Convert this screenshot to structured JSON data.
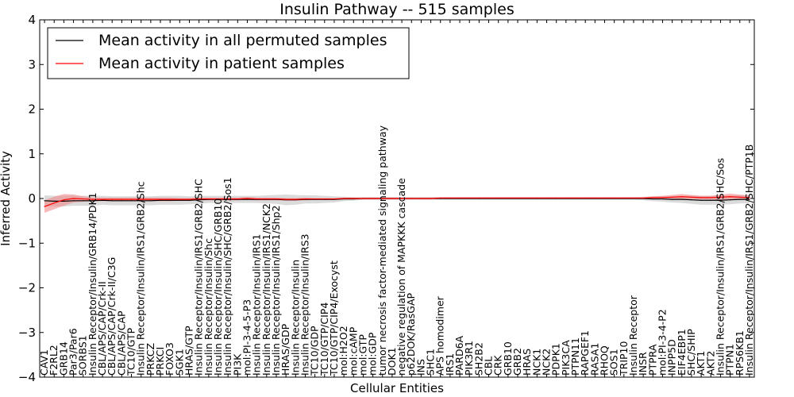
{
  "chart_data": {
    "type": "line",
    "title": "Insulin Pathway -- 515 samples",
    "xlabel": "Cellular Entities",
    "ylabel": "Inferred Activity",
    "ylim": [
      -4,
      4
    ],
    "yticks": [
      "−4",
      "−3",
      "−2",
      "−1",
      "0",
      "1",
      "2",
      "3",
      "4"
    ],
    "legend_position": "top-left",
    "categories": [
      "CAV1",
      "F2RL2",
      "GRB14",
      "Par3/Par6",
      "SORBS1",
      "Insulin Receptor/Insulin/GRB14/PDK1",
      "CBL/APS/CAP/Crk-II",
      "CBL/APS/CAP/Crk-II/C3G",
      "CBL/APS/CAP",
      "TC10/GTP",
      "Insulin Receptor/Insulin/IRS1/GRB2/Shc",
      "PRKCZ",
      "PRKCI",
      "FOXO3",
      "SGK1",
      "HRAS/GTP",
      "Insulin Receptor/Insulin/IRS1/GRB2/SHC",
      "Insulin Receptor/Insulin/Shc",
      "Insulin Receptor/Insulin/SHC/GRB10",
      "Insulin Receptor/Insulin/SHC/GRB2/Sos1",
      "PI3K",
      "mol:PI-3-4-5-P3",
      "Insulin Receptor/Insulin/IRS1",
      "Insulin Receptor/Insulin/IRS1/NCK2",
      "Insulin Receptor/Insulin/IRS1/Shp2",
      "HRAS/GDP",
      "Insulin Receptor/Insulin",
      "Insulin Receptor/Insulin/IRS3",
      "TC10/GDP",
      "TC10/GTP/CIP4",
      "TC10/GTP/CIP4/Exocyst",
      "mol:H2O2",
      "mol:cAMP",
      "mol:GTP",
      "mol:GDP",
      "tumor necrosis factor-mediated signaling pathway",
      "DOK1",
      "negative regulation of MAPKKK cascade",
      "p62DOK/RasGAP",
      "INS",
      "SHC1",
      "APS homodimer",
      "IRS1",
      "PARD6A",
      "PIK3R1",
      "SH2B2",
      "CBL",
      "CRK",
      "GRB10",
      "GRB2",
      "HRAS",
      "NCK1",
      "NCK2",
      "PDPK1",
      "PIK3CA",
      "PTPN11",
      "RAPGEF1",
      "RASA1",
      "RHOQ",
      "SOS1",
      "TRIP10",
      "Insulin Receptor",
      "INSR",
      "PTPRA",
      "mol:PI-3-4-P2",
      "INPP5D",
      "EIF4EBP1",
      "SHC/SHIP",
      "AKT1",
      "AKT2",
      "Insulin Receptor/Insulin/IRS1/GRB2/SHC/Sos",
      "PTPN1",
      "RPS6KB1",
      "Insulin Receptor/Insulin/IRS1/GRB2/SHC/PTP1B"
    ],
    "series": [
      {
        "name": "Mean activity in all permuted samples",
        "color": "#000000",
        "band_color": "#999999",
        "values": [
          -0.05,
          -0.06,
          -0.06,
          -0.05,
          -0.05,
          -0.05,
          -0.04,
          -0.05,
          -0.05,
          -0.05,
          -0.05,
          -0.05,
          -0.04,
          -0.04,
          -0.04,
          -0.04,
          -0.03,
          -0.02,
          -0.02,
          -0.02,
          -0.02,
          -0.02,
          -0.02,
          -0.02,
          -0.02,
          -0.03,
          -0.03,
          -0.02,
          -0.02,
          -0.02,
          -0.02,
          -0.01,
          -0.01,
          0.0,
          0.0,
          0.0,
          0.0,
          0.0,
          0.0,
          0.0,
          0.0,
          0.0,
          0.0,
          0.0,
          0.0,
          0.0,
          0.0,
          0.0,
          0.0,
          0.0,
          0.0,
          0.0,
          0.0,
          0.0,
          0.0,
          0.0,
          0.0,
          0.0,
          0.0,
          0.0,
          0.0,
          0.0,
          0.0,
          -0.01,
          -0.01,
          -0.02,
          -0.02,
          -0.03,
          -0.04,
          -0.04,
          -0.04,
          -0.03,
          -0.02,
          -0.02
        ],
        "band": [
          0.12,
          0.12,
          0.12,
          0.11,
          0.11,
          0.11,
          0.1,
          0.1,
          0.1,
          0.1,
          0.1,
          0.1,
          0.1,
          0.1,
          0.1,
          0.09,
          0.09,
          0.08,
          0.08,
          0.08,
          0.08,
          0.08,
          0.08,
          0.09,
          0.1,
          0.12,
          0.11,
          0.09,
          0.09,
          0.08,
          0.07,
          0.05,
          0.04,
          0.03,
          0.03,
          0.03,
          0.03,
          0.03,
          0.03,
          0.03,
          0.03,
          0.03,
          0.03,
          0.03,
          0.03,
          0.03,
          0.03,
          0.03,
          0.03,
          0.03,
          0.03,
          0.03,
          0.03,
          0.03,
          0.03,
          0.03,
          0.03,
          0.03,
          0.03,
          0.03,
          0.03,
          0.03,
          0.04,
          0.05,
          0.06,
          0.07,
          0.08,
          0.09,
          0.1,
          0.1,
          0.1,
          0.1,
          0.09,
          0.09
        ]
      },
      {
        "name": "Mean activity in patient samples",
        "color": "#ff0000",
        "band_color": "#f08080",
        "values": [
          -0.18,
          -0.1,
          -0.03,
          0.0,
          -0.01,
          -0.02,
          -0.02,
          -0.02,
          -0.02,
          -0.02,
          -0.02,
          -0.02,
          -0.02,
          -0.02,
          -0.02,
          -0.02,
          -0.01,
          -0.01,
          -0.01,
          -0.01,
          -0.01,
          0.0,
          -0.01,
          -0.01,
          -0.01,
          -0.02,
          -0.02,
          -0.01,
          -0.01,
          -0.01,
          -0.01,
          0.0,
          0.0,
          0.0,
          0.0,
          0.0,
          0.0,
          0.0,
          0.0,
          0.0,
          0.0,
          0.01,
          0.01,
          0.01,
          0.01,
          0.01,
          0.01,
          0.01,
          0.01,
          0.01,
          0.01,
          0.01,
          0.01,
          0.01,
          0.01,
          0.01,
          0.01,
          0.01,
          0.01,
          0.01,
          0.01,
          0.01,
          0.01,
          0.02,
          0.02,
          0.03,
          0.04,
          0.03,
          0.02,
          0.02,
          0.03,
          0.04,
          0.03,
          0.02
        ],
        "band": [
          0.14,
          0.14,
          0.13,
          0.09,
          0.06,
          0.04,
          0.04,
          0.04,
          0.04,
          0.04,
          0.04,
          0.04,
          0.04,
          0.04,
          0.03,
          0.03,
          0.03,
          0.03,
          0.03,
          0.03,
          0.03,
          0.03,
          0.03,
          0.03,
          0.03,
          0.03,
          0.03,
          0.03,
          0.02,
          0.02,
          0.02,
          0.02,
          0.02,
          0.02,
          0.02,
          0.02,
          0.02,
          0.02,
          0.02,
          0.02,
          0.02,
          0.02,
          0.02,
          0.02,
          0.02,
          0.02,
          0.02,
          0.02,
          0.02,
          0.02,
          0.02,
          0.02,
          0.02,
          0.02,
          0.02,
          0.02,
          0.02,
          0.02,
          0.02,
          0.02,
          0.02,
          0.02,
          0.02,
          0.03,
          0.04,
          0.05,
          0.06,
          0.05,
          0.04,
          0.04,
          0.06,
          0.07,
          0.06,
          0.05
        ]
      }
    ]
  }
}
